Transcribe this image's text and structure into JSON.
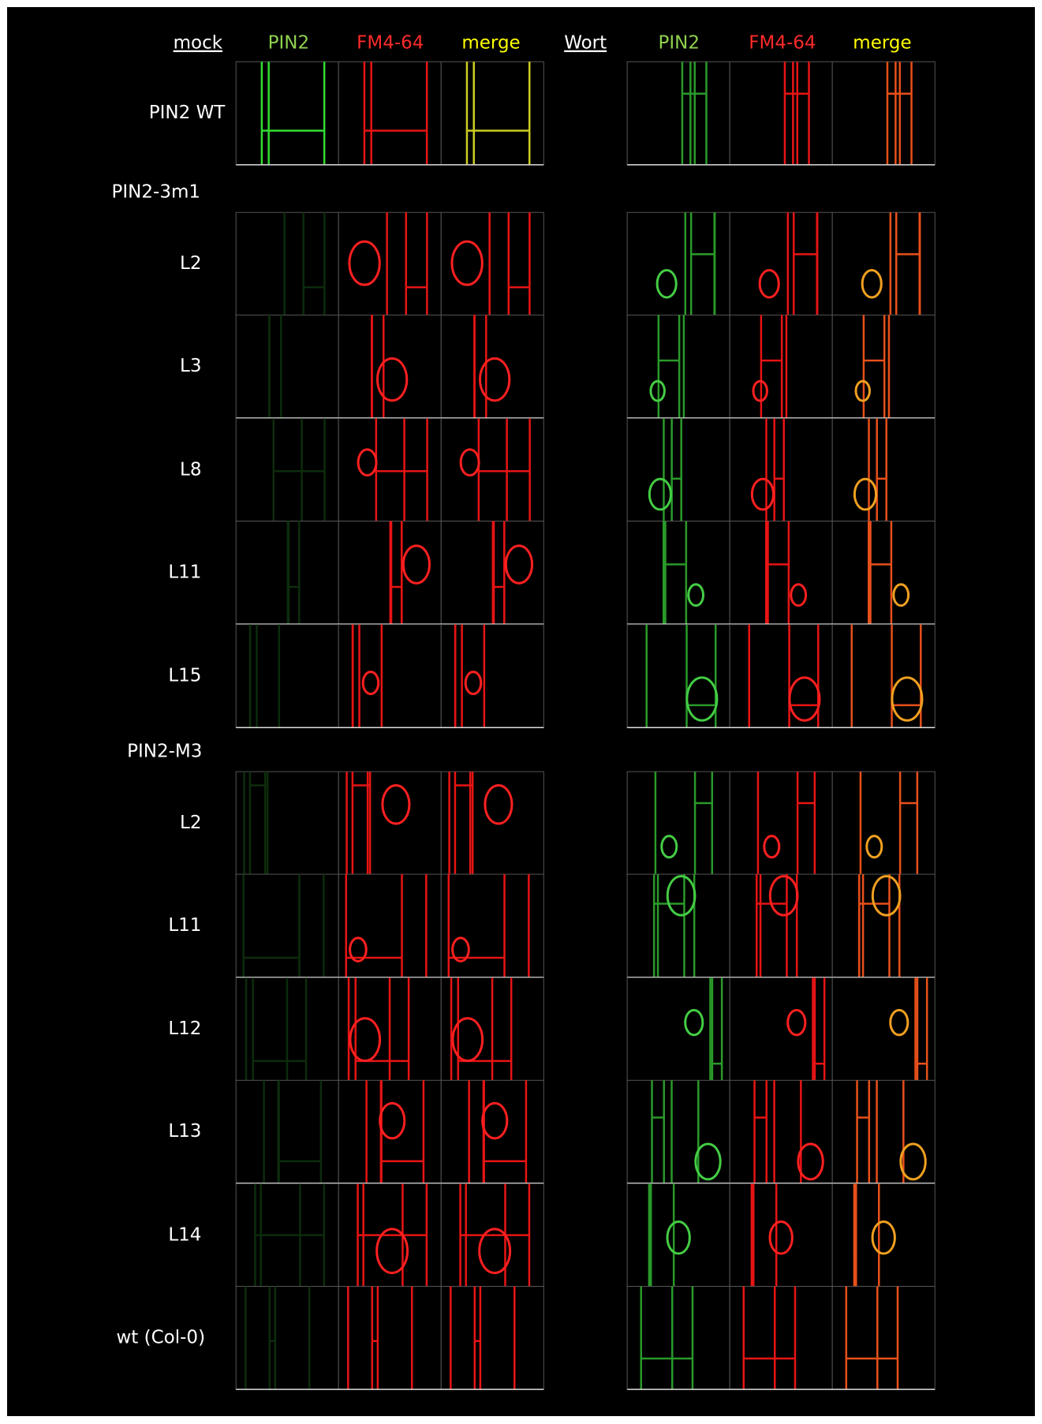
{
  "headers": [
    "mock",
    "PIN2",
    "FM4-64",
    "merge",
    "Wort",
    "PIN2",
    "FM4-64",
    "merge"
  ],
  "sections": [
    "PIN2-3m1",
    "PIN2-M3"
  ],
  "rows": [
    "PIN2 WT",
    "L2",
    "L3",
    "L8",
    "L11",
    "L15",
    "L2",
    "L11",
    "L12",
    "L13",
    "L14",
    "wt (Col-0)"
  ]
}
